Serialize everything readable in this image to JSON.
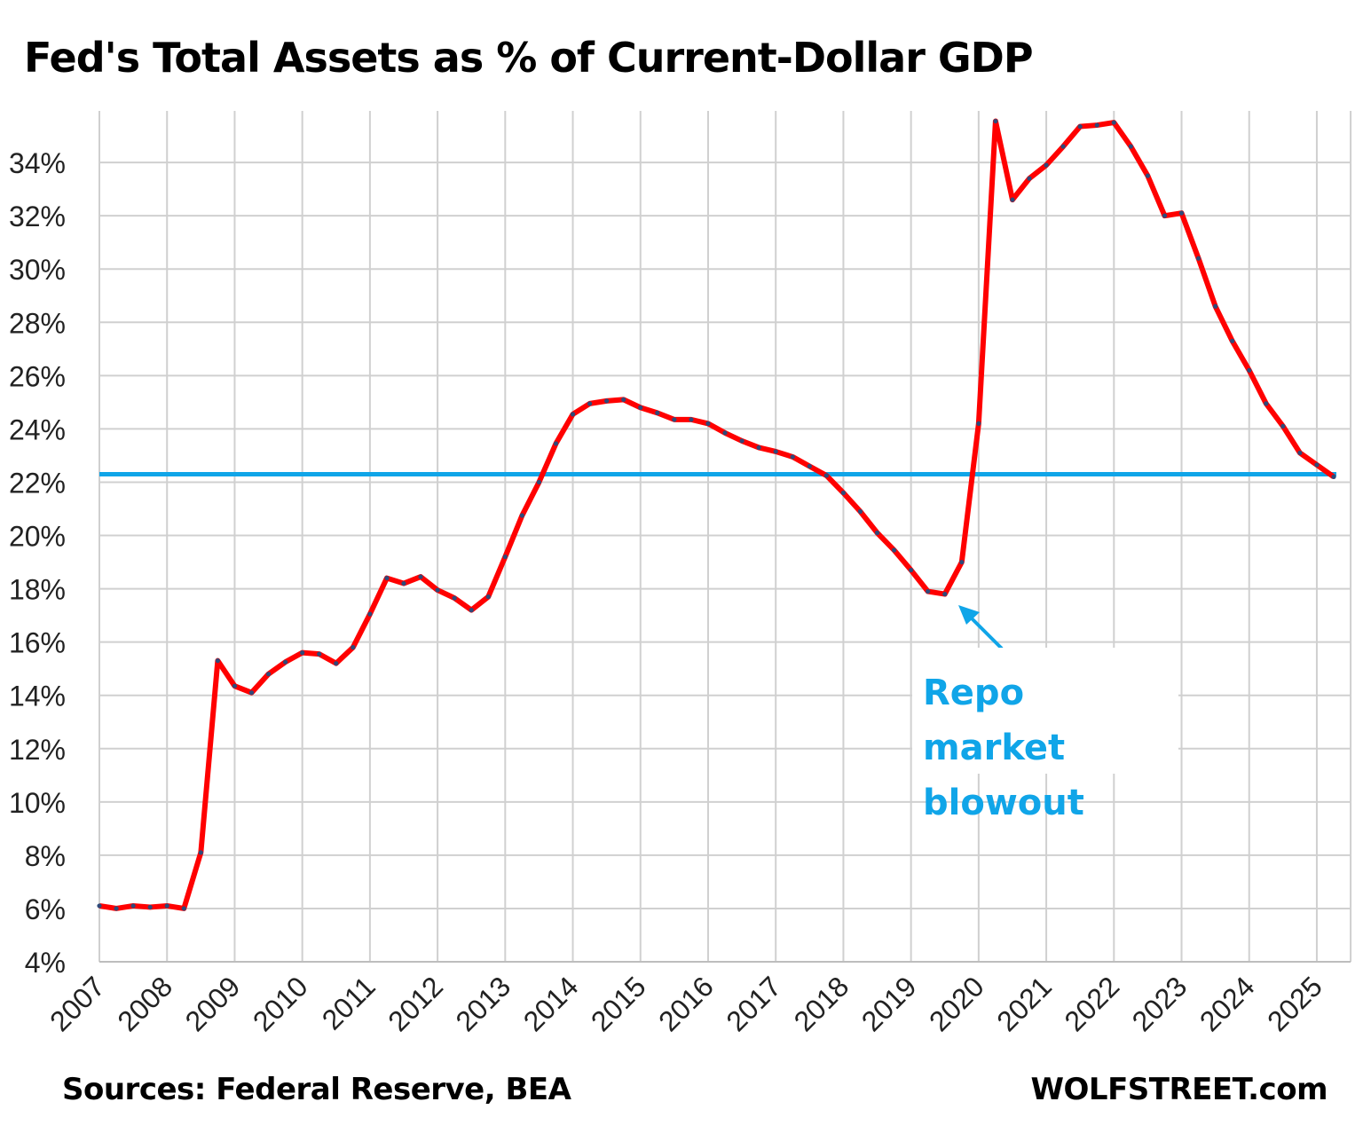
{
  "chart_data": {
    "type": "line",
    "title": "Fed's Total Assets as % of Current-Dollar GDP",
    "xlabel": "",
    "ylabel": "",
    "x_tick_labels": [
      "2007",
      "2008",
      "2009",
      "2010",
      "2011",
      "2012",
      "2013",
      "2014",
      "2015",
      "2016",
      "2017",
      "2018",
      "2019",
      "2020",
      "2021",
      "2022",
      "2023",
      "2024",
      "2025"
    ],
    "y_tick_labels": [
      "4%",
      "6%",
      "8%",
      "10%",
      "12%",
      "14%",
      "16%",
      "18%",
      "20%",
      "22%",
      "24%",
      "26%",
      "28%",
      "30%",
      "32%",
      "34%"
    ],
    "ylim": [
      4,
      36
    ],
    "xlim": [
      2007,
      2025.5
    ],
    "grid": true,
    "frequency": "quarterly",
    "start": "2007-Q1",
    "series": [
      {
        "color": "#ff0000",
        "marker_color": "#2e4a7a",
        "values": [
          6.1,
          6.0,
          6.1,
          6.05,
          6.1,
          6.0,
          8.1,
          15.3,
          14.35,
          14.1,
          14.8,
          15.25,
          15.6,
          15.55,
          15.2,
          15.8,
          17.05,
          18.4,
          18.2,
          18.45,
          17.95,
          17.65,
          17.2,
          17.7,
          19.2,
          20.75,
          22.0,
          23.45,
          24.55,
          24.95,
          25.05,
          25.1,
          24.8,
          24.6,
          24.35,
          24.35,
          24.2,
          23.85,
          23.55,
          23.3,
          23.15,
          22.95,
          22.6,
          22.25,
          21.6,
          20.9,
          20.1,
          19.45,
          18.7,
          17.9,
          17.8,
          19.0,
          24.2,
          35.55,
          32.6,
          33.4,
          33.9,
          34.6,
          35.35,
          35.4,
          35.5,
          34.6,
          33.5,
          32.0,
          32.1,
          30.4,
          28.6,
          27.3,
          26.2,
          24.95,
          24.1,
          23.1,
          22.65,
          22.2
        ]
      }
    ],
    "reference_line": {
      "value": 22.3,
      "color": "#10a5e8"
    },
    "annotation": {
      "text_line1": "Repo market",
      "text_line2": "blowout",
      "points_to": "2019-Q3",
      "color": "#10a5e8"
    }
  },
  "footer": {
    "source": "Sources: Federal Reserve, BEA",
    "brand": "WOLFSTREET.com"
  }
}
